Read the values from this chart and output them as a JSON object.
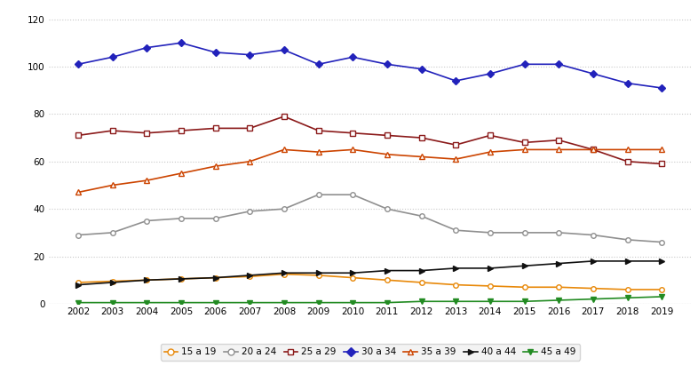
{
  "years": [
    2002,
    2003,
    2004,
    2005,
    2006,
    2007,
    2008,
    2009,
    2010,
    2011,
    2012,
    2013,
    2014,
    2015,
    2016,
    2017,
    2018,
    2019
  ],
  "series": {
    "15 a 19": {
      "values": [
        9,
        9.5,
        10,
        10.5,
        11,
        11.5,
        12.5,
        12,
        11,
        10,
        9,
        8,
        7.5,
        7,
        7,
        6.5,
        6,
        6
      ],
      "color": "#E8890A",
      "marker": "o",
      "marker_facecolor": "white",
      "marker_edgecolor": "#E8890A",
      "linewidth": 1.2,
      "markersize": 4
    },
    "20 a 24": {
      "values": [
        29,
        30,
        35,
        36,
        36,
        39,
        40,
        46,
        46,
        40,
        37,
        31,
        30,
        30,
        30,
        29,
        27,
        26
      ],
      "color": "#909090",
      "marker": "o",
      "marker_facecolor": "white",
      "marker_edgecolor": "#909090",
      "linewidth": 1.2,
      "markersize": 4
    },
    "25 a 29": {
      "values": [
        71,
        73,
        72,
        73,
        74,
        74,
        79,
        73,
        72,
        71,
        70,
        67,
        71,
        68,
        69,
        65,
        60,
        59
      ],
      "color": "#8B1A1A",
      "marker": "s",
      "marker_facecolor": "white",
      "marker_edgecolor": "#8B1A1A",
      "linewidth": 1.2,
      "markersize": 4
    },
    "30 a 34": {
      "values": [
        101,
        104,
        108,
        110,
        106,
        105,
        107,
        101,
        104,
        101,
        99,
        94,
        97,
        101,
        101,
        97,
        93,
        91
      ],
      "color": "#2222BB",
      "marker": "D",
      "marker_facecolor": "#2222BB",
      "marker_edgecolor": "#2222BB",
      "linewidth": 1.2,
      "markersize": 4
    },
    "35 a 39": {
      "values": [
        47,
        50,
        52,
        55,
        58,
        60,
        65,
        64,
        65,
        63,
        62,
        61,
        64,
        65,
        65,
        65,
        65,
        65
      ],
      "color": "#CC4400",
      "marker": "^",
      "marker_facecolor": "white",
      "marker_edgecolor": "#CC4400",
      "linewidth": 1.2,
      "markersize": 4
    },
    "40 a 44": {
      "values": [
        8,
        9,
        10,
        10.5,
        11,
        12,
        13,
        13,
        13,
        14,
        14,
        15,
        15,
        16,
        17,
        18,
        18,
        18
      ],
      "color": "#111111",
      "marker": ">",
      "marker_facecolor": "#111111",
      "marker_edgecolor": "#111111",
      "linewidth": 1.2,
      "markersize": 4
    },
    "45 a 49": {
      "values": [
        0.5,
        0.5,
        0.5,
        0.5,
        0.5,
        0.5,
        0.5,
        0.5,
        0.5,
        0.5,
        1.0,
        1.0,
        1.0,
        1.0,
        1.5,
        2.0,
        2.5,
        3.0
      ],
      "color": "#228B22",
      "marker": "v",
      "marker_facecolor": "#228B22",
      "marker_edgecolor": "#228B22",
      "linewidth": 1.2,
      "markersize": 4
    }
  },
  "ylim": [
    0,
    125
  ],
  "yticks": [
    0,
    20,
    40,
    60,
    80,
    100,
    120
  ],
  "background_color": "#ffffff",
  "plot_bg_color": "#ffffff",
  "grid_color": "#c8c8c8",
  "legend_order": [
    "15 a 19",
    "20 a 24",
    "25 a 29",
    "30 a 34",
    "35 a 39",
    "40 a 44",
    "45 a 49"
  ],
  "legend_bg": "#f0f0f0",
  "legend_edge": "#cccccc"
}
